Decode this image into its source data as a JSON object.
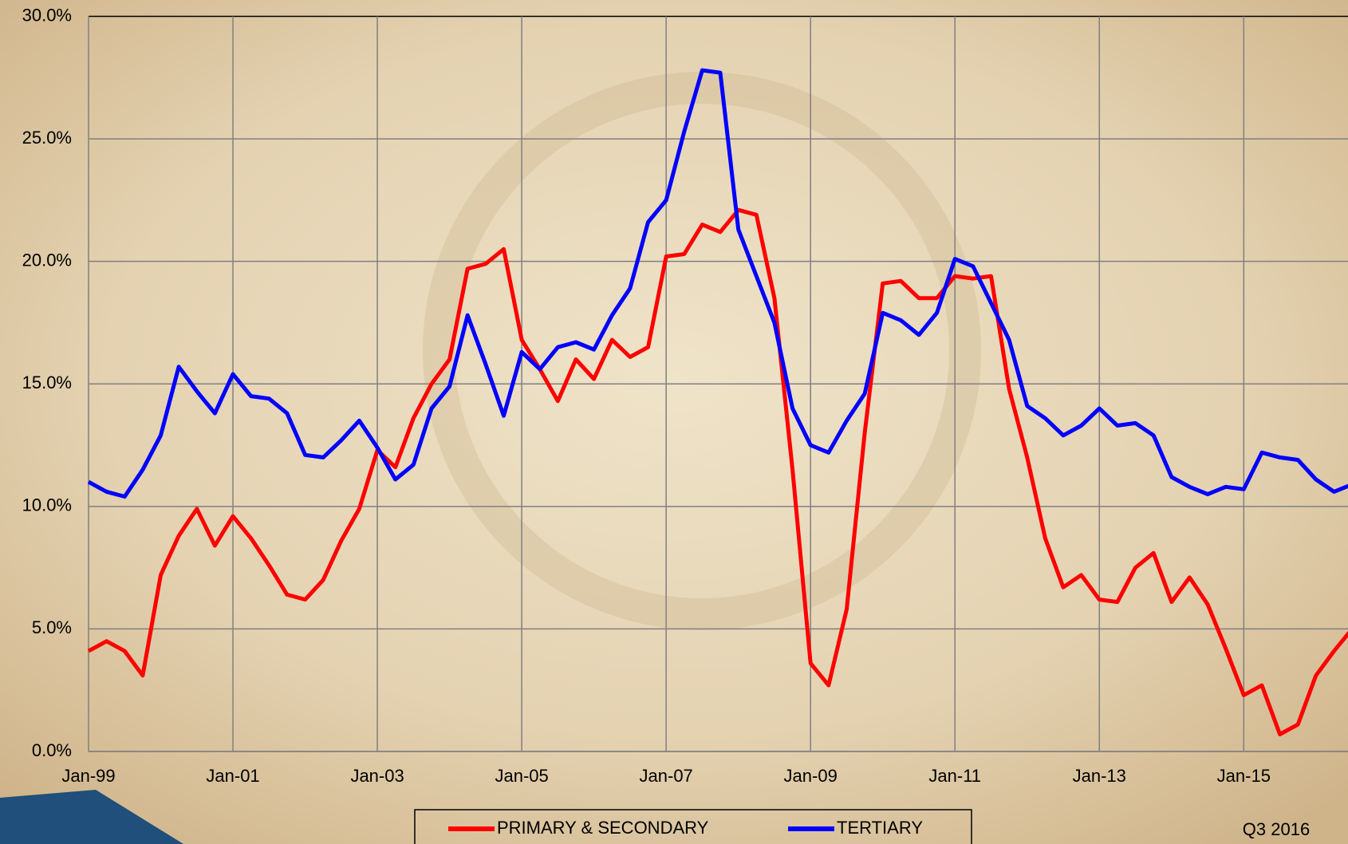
{
  "chart_data": {
    "type": "line",
    "categories": [
      "Jan-99",
      null,
      null,
      null,
      null,
      null,
      null,
      null,
      "Jan-01",
      null,
      null,
      null,
      null,
      null,
      null,
      null,
      "Jan-03",
      null,
      null,
      null,
      null,
      null,
      null,
      null,
      "Jan-05",
      null,
      null,
      null,
      null,
      null,
      null,
      null,
      "Jan-07",
      null,
      null,
      null,
      null,
      null,
      null,
      null,
      "Jan-09",
      null,
      null,
      null,
      null,
      null,
      null,
      null,
      "Jan-11",
      null,
      null,
      null,
      null,
      null,
      null,
      null,
      "Jan-13",
      null,
      null,
      null,
      null,
      null,
      null,
      null,
      "Jan-15",
      null,
      null,
      null,
      null,
      null,
      null
    ],
    "series": [
      {
        "name": "PRIMARY & SECONDARY",
        "color": "#ff0000",
        "values": [
          4.1,
          4.5,
          4.1,
          3.1,
          7.2,
          8.8,
          9.9,
          8.4,
          9.6,
          8.7,
          7.6,
          6.4,
          6.2,
          7.0,
          8.6,
          9.9,
          12.3,
          11.6,
          13.6,
          15.0,
          16.0,
          19.7,
          19.9,
          20.5,
          16.8,
          15.6,
          14.3,
          16.0,
          15.2,
          16.8,
          16.1,
          16.5,
          20.2,
          20.3,
          21.5,
          21.2,
          22.1,
          21.9,
          18.5,
          11.5,
          3.6,
          2.7,
          5.8,
          13.0,
          19.1,
          19.2,
          18.5,
          18.5,
          19.4,
          19.3,
          19.4,
          14.8,
          12.0,
          8.7,
          6.7,
          7.2,
          6.2,
          6.1,
          7.5,
          8.1,
          6.1,
          7.1,
          6.0,
          4.2,
          2.3,
          2.7,
          0.7,
          1.1,
          3.1,
          4.1,
          5.0
        ]
      },
      {
        "name": "TERTIARY",
        "color": "#0000ff",
        "values": [
          11.0,
          10.6,
          10.4,
          11.5,
          12.9,
          15.7,
          14.7,
          13.8,
          15.4,
          14.5,
          14.4,
          13.8,
          12.1,
          12.0,
          12.7,
          13.5,
          12.4,
          11.1,
          11.7,
          14.0,
          14.9,
          17.8,
          15.8,
          13.7,
          16.3,
          15.6,
          16.5,
          16.7,
          16.4,
          17.8,
          18.9,
          21.6,
          22.5,
          25.3,
          27.8,
          27.7,
          21.3,
          19.4,
          17.5,
          14.0,
          12.5,
          12.2,
          13.5,
          14.6,
          17.9,
          17.6,
          17.0,
          17.9,
          20.1,
          19.8,
          18.3,
          16.8,
          14.1,
          13.6,
          12.9,
          13.3,
          14.0,
          13.3,
          13.4,
          12.9,
          11.2,
          10.8,
          10.5,
          10.8,
          10.7,
          12.2,
          12.0,
          11.9,
          11.1,
          10.6,
          10.9
        ]
      }
    ],
    "ylim": [
      0,
      30
    ],
    "yticks": [
      {
        "value": 0,
        "label": "0.0%"
      },
      {
        "value": 5,
        "label": "5.0%"
      },
      {
        "value": 10,
        "label": "10.0%"
      },
      {
        "value": 15,
        "label": "15.0%"
      },
      {
        "value": 20,
        "label": "20.0%"
      },
      {
        "value": 25,
        "label": "25.0%"
      },
      {
        "value": 30,
        "label": "30.0%"
      }
    ],
    "grid": true,
    "legend": "bottom",
    "annotation": "Q3 2016"
  }
}
